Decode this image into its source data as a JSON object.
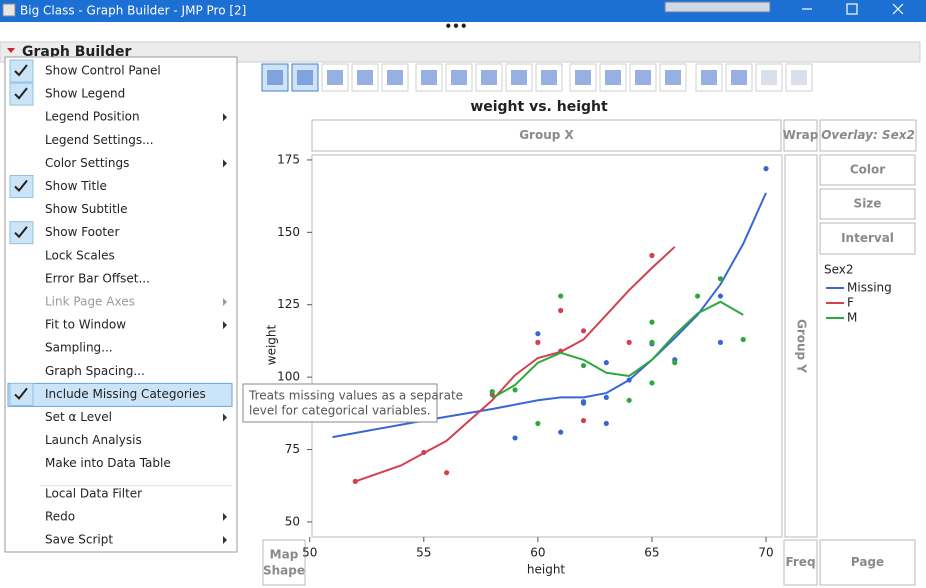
{
  "window": {
    "title": "Big Class - Graph Builder - JMP Pro [2]"
  },
  "panel": {
    "title": "Graph Builder"
  },
  "menu": {
    "items": [
      {
        "label": "Show Control Panel",
        "checked": true
      },
      {
        "label": "Show Legend",
        "checked": true
      },
      {
        "label": "Legend Position",
        "submenu": true
      },
      {
        "label": "Legend Settings..."
      },
      {
        "label": "Color Settings",
        "submenu": true
      },
      {
        "label": "Show Title",
        "checked": true
      },
      {
        "label": "Show Subtitle"
      },
      {
        "label": "Show Footer",
        "checked": true
      },
      {
        "label": "Lock Scales"
      },
      {
        "label": "Error Bar Offset..."
      },
      {
        "label": "Link Page Axes",
        "submenu": true,
        "disabled": true
      },
      {
        "label": "Fit to Window",
        "submenu": true
      },
      {
        "label": "Sampling..."
      },
      {
        "label": "Graph Spacing..."
      },
      {
        "label": "Include Missing Categories",
        "checked": true,
        "highlighted": true
      },
      {
        "label": "Set α Level",
        "submenu": true
      },
      {
        "label": "Launch Analysis"
      },
      {
        "label": "Make into Data Table"
      },
      {
        "label": "Local Data Filter",
        "separator_before": true
      },
      {
        "label": "Redo",
        "submenu": true
      },
      {
        "label": "Save Script",
        "submenu": true
      }
    ]
  },
  "tooltip": {
    "lines": [
      "Treats missing values as a separate",
      "level for categorical variables."
    ]
  },
  "chart_data": {
    "type": "scatter",
    "title": "weight vs. height",
    "x_label": "height",
    "y_label": "weight",
    "xlim": [
      50.1,
      70.7
    ],
    "ylim": [
      44.8,
      176.7
    ],
    "xticks": [
      50,
      55,
      60,
      65,
      70
    ],
    "yticks": [
      50,
      75,
      100,
      125,
      150,
      175
    ],
    "legend_title": "Sex2",
    "zones": {
      "group_x": "Group X",
      "wrap": "Wrap",
      "overlay": "Overlay: Sex2",
      "color": "Color",
      "size": "Size",
      "interval": "Interval",
      "group_y": "Group Y",
      "map_shape": [
        "Map",
        "Shape"
      ],
      "freq": "Freq",
      "page": "Page"
    },
    "series": [
      {
        "name": "Missing",
        "color": "#3a66d4",
        "x": [
          60,
          59,
          61,
          62,
          62,
          63,
          63,
          63,
          64,
          65,
          66,
          68,
          68,
          70
        ],
        "values": [
          115,
          79,
          81,
          91.5,
          91,
          105,
          93,
          84,
          99,
          111.5,
          106,
          112,
          128,
          172
        ],
        "smoother": {
          "x": [
            51,
            52,
            55,
            58,
            60,
            61,
            62,
            63,
            64,
            65,
            66,
            67,
            68,
            69,
            70
          ],
          "values": [
            79.3,
            80.7,
            85,
            89,
            92,
            93,
            93,
            94.5,
            99,
            106,
            113.5,
            121.5,
            132,
            146,
            163.6
          ]
        }
      },
      {
        "name": "F",
        "color": "#d4404f",
        "x": [
          60,
          61,
          62,
          62,
          64,
          65,
          52,
          55,
          56,
          58,
          61
        ],
        "values": [
          112,
          123,
          116,
          85,
          112,
          142,
          64,
          74,
          67,
          94,
          109
        ],
        "smoother": {
          "x": [
            52,
            54,
            56,
            58,
            59,
            60,
            61,
            62,
            63,
            64,
            65,
            66
          ],
          "values": [
            64,
            69.5,
            78,
            92,
            100.7,
            106.6,
            108.7,
            113,
            121.5,
            130,
            137.7,
            145
          ]
        }
      },
      {
        "name": "M",
        "color": "#2ea83c",
        "x": [
          61,
          60,
          59,
          58,
          62,
          64,
          65,
          65,
          65,
          66,
          67,
          68,
          69
        ],
        "values": [
          128,
          84,
          95.6,
          95,
          104,
          92,
          119,
          112,
          98,
          105,
          128,
          134,
          113
        ],
        "smoother": {
          "x": [
            58,
            59,
            60,
            61,
            62,
            63,
            64,
            65,
            66,
            67,
            68,
            69
          ],
          "values": [
            92.8,
            97.3,
            105,
            108.4,
            106,
            101.5,
            100.4,
            106,
            114.6,
            122,
            126,
            121.5
          ]
        }
      }
    ]
  }
}
